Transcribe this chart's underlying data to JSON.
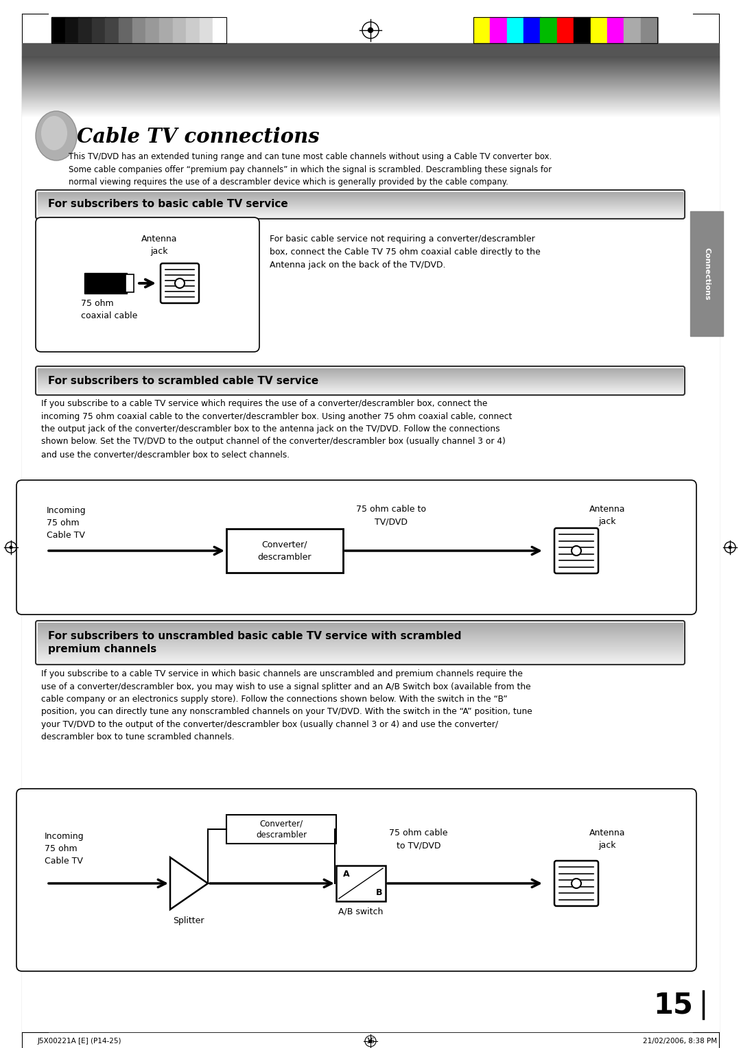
{
  "bg_color": "#ffffff",
  "title_text": "Cable TV connections",
  "intro_text": "This TV/DVD has an extended tuning range and can tune most cable channels without using a Cable TV converter box.\nSome cable companies offer “premium pay channels” in which the signal is scrambled. Descrambling these signals for\nnormal viewing requires the use of a descrambler device which is generally provided by the cable company.",
  "section1_title": "For subscribers to basic cable TV service",
  "section1_box_text": "For basic cable service not requiring a converter/descrambler\nbox, connect the Cable TV 75 ohm coaxial cable directly to the\nAntenna jack on the back of the TV/DVD.",
  "section1_label_antenna": "Antenna\njack",
  "section1_label_cable": "75 ohm\ncoaxial cable",
  "section2_title": "For subscribers to scrambled cable TV service",
  "section2_para": "If you subscribe to a cable TV service which requires the use of a converter/descrambler box, connect the\nincoming 75 ohm coaxial cable to the converter/descrambler box. Using another 75 ohm coaxial cable, connect\nthe output jack of the converter/descrambler box to the antenna jack on the TV/DVD. Follow the connections\nshown below. Set the TV/DVD to the output channel of the converter/descrambler box (usually channel 3 or 4)\nand use the converter/descrambler box to select channels.",
  "section2_label_incoming": "Incoming\n75 ohm\nCable TV",
  "section2_label_converter": "Converter/\ndescrambler",
  "section2_label_75ohm": "75 ohm cable to\nTV/DVD",
  "section2_label_antenna": "Antenna\njack",
  "section3_title": "For subscribers to unscrambled basic cable TV service with scrambled\npremium channels",
  "section3_para": "If you subscribe to a cable TV service in which basic channels are unscrambled and premium channels require the\nuse of a converter/descrambler box, you may wish to use a signal splitter and an A/B Switch box (available from the\ncable company or an electronics supply store). Follow the connections shown below. With the switch in the “B”\nposition, you can directly tune any nonscrambled channels on your TV/DVD. With the switch in the “A” position, tune\nyour TV/DVD to the output of the converter/descrambler box (usually channel 3 or 4) and use the converter/\ndescrambler box to tune scrambled channels.",
  "section3_label_incoming": "Incoming\n75 ohm\nCable TV",
  "section3_label_converter": "Converter/\ndescrambler",
  "section3_label_splitter": "Splitter",
  "section3_label_ab": "A/B switch",
  "section3_label_75ohm": "75 ohm cable\nto TV/DVD",
  "section3_label_antenna": "Antenna\njack",
  "connections_label": "Connections",
  "page_number": "15",
  "footer_left": "J5X00221A [E] (P14-25)",
  "footer_center": "15",
  "footer_right": "21/02/2006, 8:38 PM",
  "gray_tab_color": "#888888",
  "colors_bw": [
    "#000000",
    "#111111",
    "#222222",
    "#333333",
    "#444444",
    "#666666",
    "#888888",
    "#999999",
    "#aaaaaa",
    "#bbbbbb",
    "#cccccc",
    "#dddddd",
    "#ffffff"
  ],
  "colors_rgb": [
    "#ffff00",
    "#ff00ff",
    "#00ffff",
    "#0000ff",
    "#00bb00",
    "#ff0000",
    "#000000",
    "#ffff00",
    "#ff00ff",
    "#aaaaaa",
    "#888888"
  ]
}
